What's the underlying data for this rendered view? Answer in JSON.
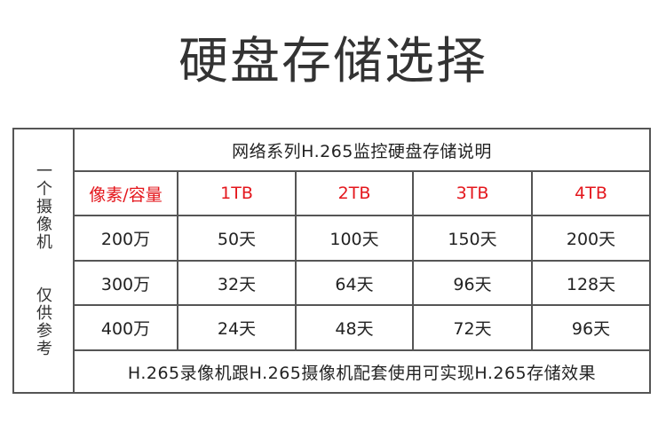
{
  "title": "硬盘存储选择",
  "side": {
    "label1": "一个摄像机",
    "label2": "仅供参考"
  },
  "table": {
    "header": "网络系列H.265监控硬盘存储说明",
    "columns": [
      "像素/容量",
      "1TB",
      "2TB",
      "3TB",
      "4TB"
    ],
    "rows": [
      [
        "200万",
        "50天",
        "100天",
        "150天",
        "200天"
      ],
      [
        "300万",
        "32天",
        "64天",
        "96天",
        "128天"
      ],
      [
        "400万",
        "24天",
        "48天",
        "72天",
        "96天"
      ]
    ],
    "footer": "H.265录像机跟H.265摄像机配套使用可实现H.265存储效果"
  },
  "colors": {
    "accent": "#e4171d",
    "border": "#555555"
  }
}
